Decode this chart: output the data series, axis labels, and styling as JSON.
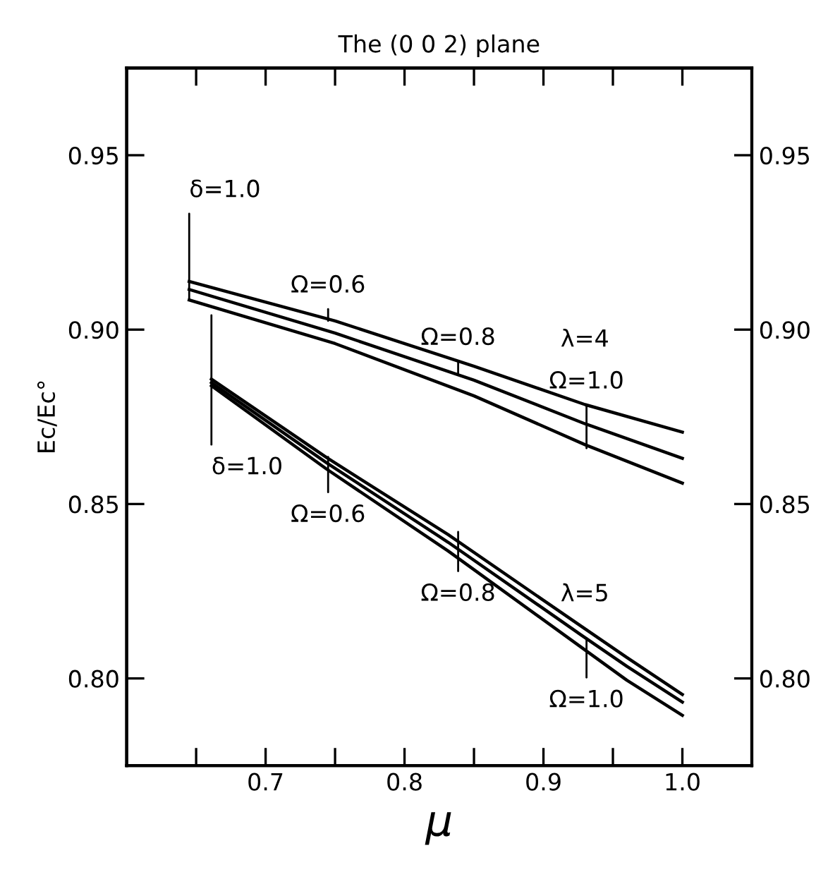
{
  "chart_data": {
    "type": "line",
    "title": "The (0 0 2) plane",
    "xlabel": "μ",
    "ylabel": "Ec/Ec°",
    "xlim": [
      0.6,
      1.05
    ],
    "ylim": [
      0.775,
      0.975
    ],
    "xticks": [
      {
        "value": 0.65,
        "label": null
      },
      {
        "value": 0.7,
        "label": "0.7"
      },
      {
        "value": 0.75,
        "label": null
      },
      {
        "value": 0.8,
        "label": "0.8"
      },
      {
        "value": 0.85,
        "label": null
      },
      {
        "value": 0.9,
        "label": "0.9"
      },
      {
        "value": 0.95,
        "label": null
      },
      {
        "value": 1.0,
        "label": "1.0"
      }
    ],
    "yticks": [
      {
        "value": 0.8,
        "label": "0.80"
      },
      {
        "value": 0.85,
        "label": "0.85"
      },
      {
        "value": 0.9,
        "label": "0.90"
      },
      {
        "value": 0.95,
        "label": "0.95"
      }
    ],
    "y2lim": [
      0.775,
      0.975
    ],
    "y2ticks": [
      {
        "value": 0.8,
        "label": "0.80"
      },
      {
        "value": 0.85,
        "label": "0.85"
      },
      {
        "value": 0.9,
        "label": "0.90"
      },
      {
        "value": 0.95,
        "label": "0.95"
      }
    ],
    "grid": false,
    "marker": "none",
    "line_style": "solid",
    "series": [
      {
        "color": "#000000",
        "x": [
          0.645,
          0.75,
          0.85,
          0.93,
          1.0
        ],
        "values": [
          0.9138,
          0.9025,
          0.8895,
          0.8785,
          0.8706
        ]
      },
      {
        "color": "#000000",
        "x": [
          0.645,
          0.75,
          0.85,
          0.93,
          1.0
        ],
        "values": [
          0.9115,
          0.899,
          0.8855,
          0.873,
          0.8631
        ]
      },
      {
        "color": "#000000",
        "x": [
          0.645,
          0.75,
          0.85,
          0.93,
          1.0
        ],
        "values": [
          0.9085,
          0.896,
          0.881,
          0.867,
          0.856
        ]
      },
      {
        "color": "#000000",
        "x": [
          0.661,
          0.744,
          0.8315,
          0.927,
          0.96,
          1.0
        ],
        "values": [
          0.8858,
          0.8633,
          0.8412,
          0.815,
          0.806,
          0.7954
        ]
      },
      {
        "color": "#000000",
        "x": [
          0.661,
          0.744,
          0.8315,
          0.927,
          0.96,
          1.0
        ],
        "values": [
          0.8848,
          0.8618,
          0.839,
          0.8125,
          0.8035,
          0.7932
        ]
      },
      {
        "color": "#000000",
        "x": [
          0.661,
          0.744,
          0.8315,
          0.927,
          0.96,
          1.0
        ],
        "values": [
          0.8839,
          0.86,
          0.8365,
          0.809,
          0.7995,
          0.7894
        ]
      }
    ],
    "annotations": [
      {
        "text": "δ=1.0",
        "x": 0.645,
        "y": 0.9085
      },
      {
        "text": "δ=1.0",
        "x": 0.661,
        "y": 0.8839
      },
      {
        "text": "Ω=0.6",
        "x": 0.745,
        "y": 0.9025
      },
      {
        "text": "Ω=0.8",
        "x": 0.8386,
        "y": 0.8875
      },
      {
        "text": "Ω=1.0",
        "x": 0.931,
        "y": 0.866
      },
      {
        "text": "Ω=0.6",
        "x": 0.745,
        "y": 0.8635
      },
      {
        "text": "Ω=0.8",
        "x": 0.8386,
        "y": 0.842
      },
      {
        "text": "Ω=1.0",
        "x": 0.931,
        "y": 0.8115
      },
      "λ=4",
      "λ=5"
    ]
  }
}
